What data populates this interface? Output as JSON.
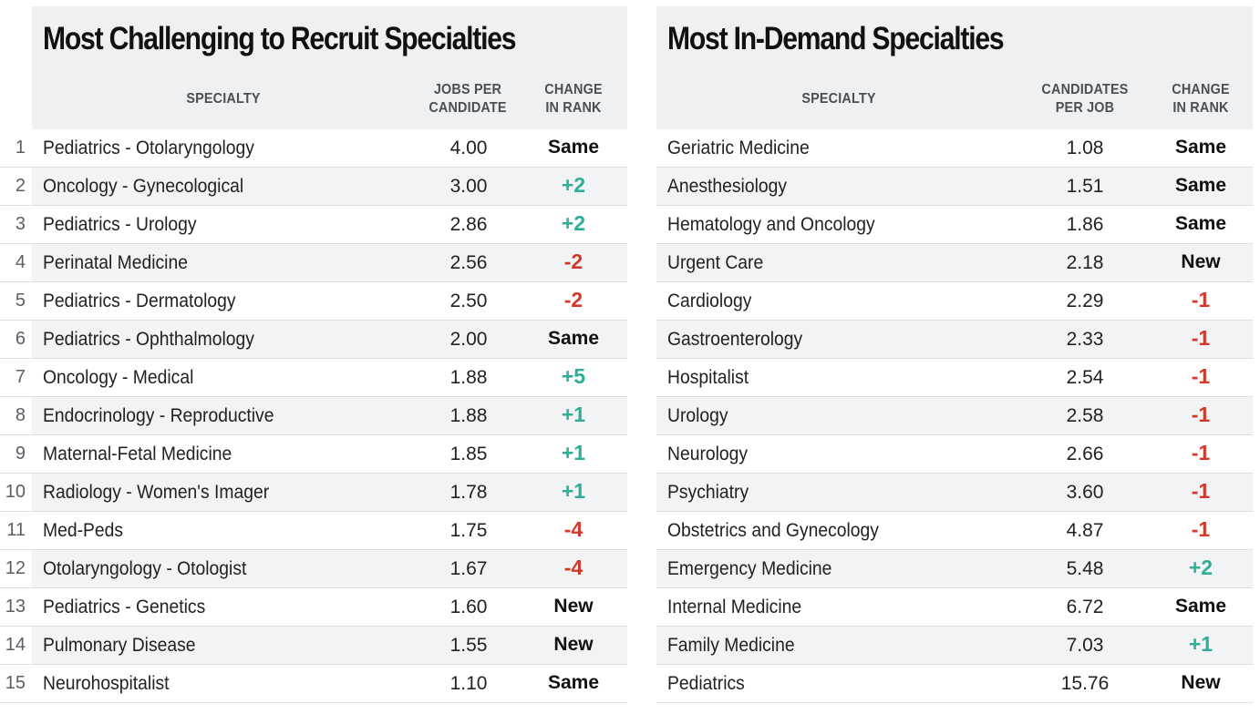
{
  "left": {
    "title": "Most Challenging to Recruit Specialties",
    "col_specialty": "SPECIALTY",
    "col_value_line1": "JOBS PER",
    "col_value_line2": "CANDIDATE",
    "col_change_line1": "CHANGE",
    "col_change_line2": "IN RANK",
    "rows": [
      {
        "rank": "1",
        "name": "Pediatrics - Otolaryngology",
        "value": "4.00",
        "change": "Same",
        "dir": "same"
      },
      {
        "rank": "2",
        "name": "Oncology - Gynecological",
        "value": "3.00",
        "change": "+2",
        "dir": "up"
      },
      {
        "rank": "3",
        "name": "Pediatrics - Urology",
        "value": "2.86",
        "change": "+2",
        "dir": "up"
      },
      {
        "rank": "4",
        "name": "Perinatal Medicine",
        "value": "2.56",
        "change": "-2",
        "dir": "down"
      },
      {
        "rank": "5",
        "name": "Pediatrics - Dermatology",
        "value": "2.50",
        "change": "-2",
        "dir": "down"
      },
      {
        "rank": "6",
        "name": "Pediatrics - Ophthalmology",
        "value": "2.00",
        "change": "Same",
        "dir": "same"
      },
      {
        "rank": "7",
        "name": "Oncology - Medical",
        "value": "1.88",
        "change": "+5",
        "dir": "up"
      },
      {
        "rank": "8",
        "name": "Endocrinology - Reproductive",
        "value": "1.88",
        "change": "+1",
        "dir": "up"
      },
      {
        "rank": "9",
        "name": "Maternal-Fetal Medicine",
        "value": "1.85",
        "change": "+1",
        "dir": "up"
      },
      {
        "rank": "10",
        "name": "Radiology - Women's Imager",
        "value": "1.78",
        "change": "+1",
        "dir": "up"
      },
      {
        "rank": "11",
        "name": "Med-Peds",
        "value": "1.75",
        "change": "-4",
        "dir": "down"
      },
      {
        "rank": "12",
        "name": "Otolaryngology - Otologist",
        "value": "1.67",
        "change": "-4",
        "dir": "down"
      },
      {
        "rank": "13",
        "name": "Pediatrics - Genetics",
        "value": "1.60",
        "change": "New",
        "dir": "new"
      },
      {
        "rank": "14",
        "name": "Pulmonary Disease",
        "value": "1.55",
        "change": "New",
        "dir": "new"
      },
      {
        "rank": "15",
        "name": "Neurohospitalist",
        "value": "1.10",
        "change": "Same",
        "dir": "same"
      }
    ]
  },
  "right": {
    "title": "Most In-Demand Specialties",
    "col_specialty": "SPECIALTY",
    "col_value_line1": "CANDIDATES",
    "col_value_line2": "PER JOB",
    "col_change_line1": "CHANGE",
    "col_change_line2": "IN RANK",
    "rows": [
      {
        "name": "Geriatric Medicine",
        "value": "1.08",
        "change": "Same",
        "dir": "same"
      },
      {
        "name": "Anesthesiology",
        "value": "1.51",
        "change": "Same",
        "dir": "same"
      },
      {
        "name": "Hematology and Oncology",
        "value": "1.86",
        "change": "Same",
        "dir": "same"
      },
      {
        "name": "Urgent Care",
        "value": "2.18",
        "change": "New",
        "dir": "new"
      },
      {
        "name": "Cardiology",
        "value": "2.29",
        "change": "-1",
        "dir": "down"
      },
      {
        "name": "Gastroenterology",
        "value": "2.33",
        "change": "-1",
        "dir": "down"
      },
      {
        "name": "Hospitalist",
        "value": "2.54",
        "change": "-1",
        "dir": "down"
      },
      {
        "name": "Urology",
        "value": "2.58",
        "change": "-1",
        "dir": "down"
      },
      {
        "name": "Neurology",
        "value": "2.66",
        "change": "-1",
        "dir": "down"
      },
      {
        "name": "Psychiatry",
        "value": "3.60",
        "change": "-1",
        "dir": "down"
      },
      {
        "name": "Obstetrics and Gynecology",
        "value": "4.87",
        "change": "-1",
        "dir": "down"
      },
      {
        "name": "Emergency Medicine",
        "value": "5.48",
        "change": "+2",
        "dir": "up"
      },
      {
        "name": "Internal Medicine",
        "value": "6.72",
        "change": "Same",
        "dir": "same"
      },
      {
        "name": "Family Medicine",
        "value": "7.03",
        "change": "+1",
        "dir": "up"
      },
      {
        "name": "Pediatrics",
        "value": "15.76",
        "change": "New",
        "dir": "new"
      }
    ]
  },
  "colors": {
    "up": "#2fae97",
    "down": "#d2392b",
    "header_bg": "#eef0f1",
    "row_shade": "#f1f3f4"
  }
}
